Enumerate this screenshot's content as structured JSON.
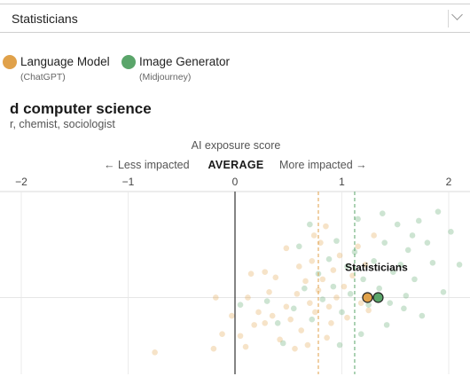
{
  "filter": {
    "selected": "Statisticians"
  },
  "legend": [
    {
      "label": "Language Model",
      "sublabel": "(ChatGPT)",
      "color": "#e0a14a"
    },
    {
      "label": "Image Generator",
      "sublabel": "(Midjourney)",
      "color": "#5aa56a"
    }
  ],
  "section": {
    "title": "d computer science",
    "subtitle": "r, chemist, sociologist"
  },
  "axis": {
    "title": "AI exposure score",
    "left_direction": "← Less impacted",
    "center_label": "AVERAGE",
    "right_direction": "More impacted →"
  },
  "chart_data": {
    "type": "scatter",
    "xlim": [
      -2.2,
      2.2
    ],
    "x_ticks": [
      -2,
      -1,
      0,
      1,
      2
    ],
    "x_tick_labels": [
      "−2",
      "−1",
      "0",
      "1",
      "2"
    ],
    "grid": true,
    "reference_lines": {
      "average": 0,
      "language_model_mean": 0.78,
      "image_generator_mean": 1.12
    },
    "highlight": {
      "label": "Statisticians",
      "language_model": 1.24,
      "image_generator": 1.34
    },
    "series": [
      {
        "name": "Language Model",
        "color": "#e0a14a",
        "points": [
          [
            -0.75,
            0.88
          ],
          [
            -0.18,
            0.58
          ],
          [
            -0.12,
            0.78
          ],
          [
            0.05,
            0.79
          ],
          [
            0.18,
            0.73
          ],
          [
            -0.03,
            0.68
          ],
          [
            0.12,
            0.58
          ],
          [
            0.22,
            0.66
          ],
          [
            0.28,
            0.72
          ],
          [
            0.35,
            0.68
          ],
          [
            0.42,
            0.81
          ],
          [
            0.48,
            0.63
          ],
          [
            0.52,
            0.7
          ],
          [
            0.58,
            0.56
          ],
          [
            0.62,
            0.76
          ],
          [
            0.66,
            0.49
          ],
          [
            0.7,
            0.61
          ],
          [
            0.72,
            0.38
          ],
          [
            0.75,
            0.66
          ],
          [
            0.78,
            0.54
          ],
          [
            0.8,
            0.28
          ],
          [
            0.82,
            0.48
          ],
          [
            0.86,
            0.8
          ],
          [
            0.88,
            0.63
          ],
          [
            0.92,
            0.43
          ],
          [
            0.95,
            0.58
          ],
          [
            0.98,
            0.35
          ],
          [
            1.02,
            0.52
          ],
          [
            1.05,
            0.69
          ],
          [
            1.1,
            0.46
          ],
          [
            1.15,
            0.3
          ],
          [
            1.18,
            0.61
          ],
          [
            1.22,
            0.4
          ],
          [
            0.48,
            0.31
          ],
          [
            0.38,
            0.47
          ],
          [
            0.28,
            0.44
          ],
          [
            0.56,
            0.86
          ],
          [
            0.68,
            0.84
          ],
          [
            0.9,
            0.72
          ],
          [
            1.25,
            0.65
          ],
          [
            0.1,
            0.85
          ],
          [
            0.32,
            0.55
          ],
          [
            0.6,
            0.41
          ],
          [
            1.3,
            0.24
          ],
          [
            0.74,
            0.24
          ],
          [
            -0.2,
            0.86
          ],
          [
            0.15,
            0.45
          ],
          [
            0.85,
            0.19
          ]
        ]
      },
      {
        "name": "Image Generator",
        "color": "#5aa56a",
        "points": [
          [
            0.05,
            0.62
          ],
          [
            0.3,
            0.6
          ],
          [
            0.4,
            0.72
          ],
          [
            0.45,
            0.83
          ],
          [
            0.55,
            0.64
          ],
          [
            0.6,
            0.3
          ],
          [
            0.65,
            0.53
          ],
          [
            0.7,
            0.18
          ],
          [
            0.78,
            0.45
          ],
          [
            0.82,
            0.59
          ],
          [
            0.88,
            0.37
          ],
          [
            0.92,
            0.52
          ],
          [
            0.95,
            0.27
          ],
          [
            1.0,
            0.66
          ],
          [
            1.05,
            0.41
          ],
          [
            1.08,
            0.56
          ],
          [
            1.12,
            0.33
          ],
          [
            1.15,
            0.15
          ],
          [
            1.2,
            0.48
          ],
          [
            1.25,
            0.62
          ],
          [
            1.3,
            0.38
          ],
          [
            1.35,
            0.53
          ],
          [
            1.4,
            0.28
          ],
          [
            1.45,
            0.61
          ],
          [
            1.48,
            0.44
          ],
          [
            1.52,
            0.18
          ],
          [
            1.55,
            0.4
          ],
          [
            1.6,
            0.57
          ],
          [
            1.62,
            0.32
          ],
          [
            1.68,
            0.48
          ],
          [
            1.72,
            0.16
          ],
          [
            1.75,
            0.68
          ],
          [
            1.8,
            0.28
          ],
          [
            1.85,
            0.39
          ],
          [
            1.9,
            0.11
          ],
          [
            1.95,
            0.55
          ],
          [
            2.02,
            0.22
          ],
          [
            2.1,
            0.4
          ],
          [
            1.58,
            0.64
          ],
          [
            1.42,
            0.73
          ],
          [
            1.18,
            0.78
          ],
          [
            0.98,
            0.84
          ],
          [
            1.66,
            0.24
          ],
          [
            1.38,
            0.12
          ],
          [
            0.72,
            0.7
          ]
        ]
      }
    ]
  }
}
